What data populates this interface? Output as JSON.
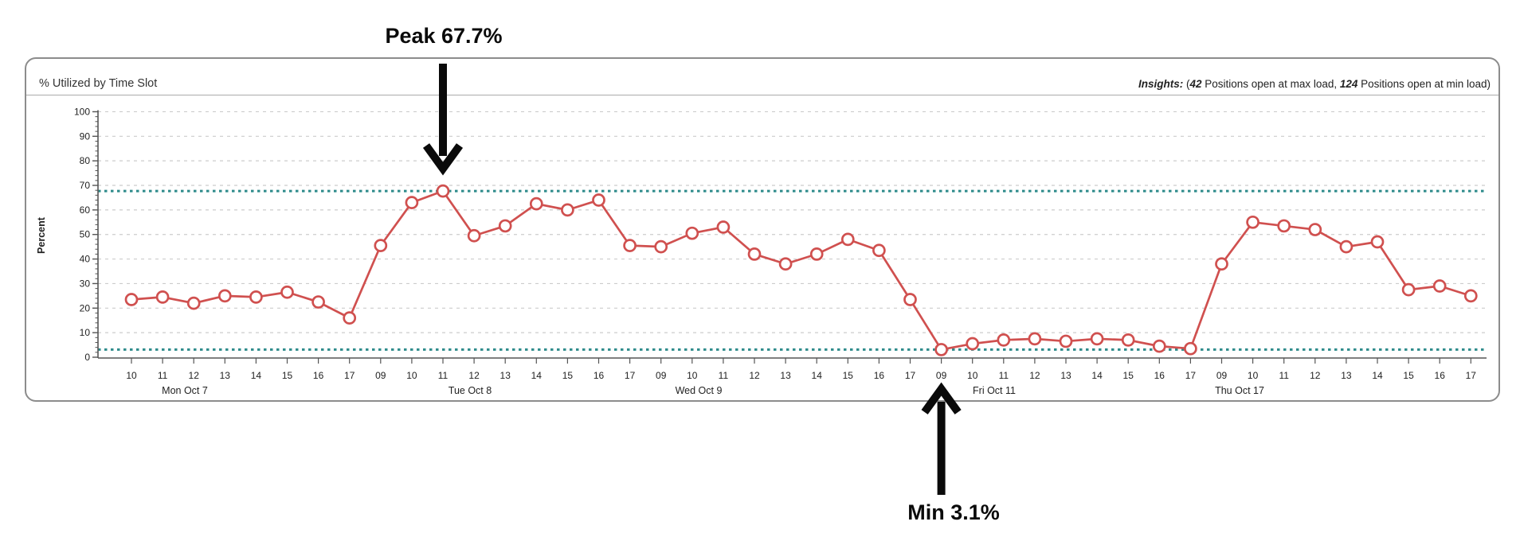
{
  "panel": {
    "title": "% Utilized by Time Slot",
    "insights": {
      "label": "Insights:",
      "open": " (",
      "max_count": "42",
      "max_text": " Positions open at max load, ",
      "min_count": "124",
      "min_text": " Positions open at min load)"
    }
  },
  "annotations": {
    "peak": {
      "label": "Peak 67.7%",
      "value": 67.7,
      "point_index": 10
    },
    "min": {
      "label": "Min 3.1%",
      "value": 3.1,
      "point_index": 26
    }
  },
  "colors": {
    "series": "#d0504f",
    "marker_fill": "#ffffff",
    "reference": "#2e8b8b",
    "grid": "#cccccc",
    "axis": "#555555",
    "label": "#222222",
    "annotation": "#0a0a0a",
    "panel_border": "#8c8c8c"
  },
  "chart_data": {
    "type": "line",
    "title": "% Utilized by Time Slot",
    "xlabel": "",
    "ylabel": "Percent",
    "ylim": [
      0,
      100
    ],
    "y_ticks": [
      0,
      10,
      20,
      30,
      40,
      50,
      60,
      70,
      80,
      90,
      100
    ],
    "grid": true,
    "legend": false,
    "marker": "open-circle",
    "series_name": "% Utilized",
    "reference_lines": [
      {
        "name": "max-load-line",
        "value": 67.7
      },
      {
        "name": "min-load-line",
        "value": 3.1
      }
    ],
    "groups": [
      {
        "day": "Mon Oct 7",
        "hours": [
          "10",
          "11",
          "12",
          "13",
          "14",
          "15",
          "16",
          "17"
        ],
        "values": [
          23.5,
          24.5,
          22,
          25,
          24.5,
          26.5,
          22.5,
          16
        ]
      },
      {
        "day": "Tue Oct 8",
        "hours": [
          "09",
          "10",
          "11",
          "12",
          "13",
          "14",
          "15",
          "16",
          "17"
        ],
        "values": [
          45.5,
          63,
          67.7,
          49.5,
          53.5,
          62.5,
          60,
          64,
          45.5
        ]
      },
      {
        "day": "Wed Oct 9",
        "hours": [
          "09",
          "10",
          "11",
          "12",
          "13",
          "14",
          "15",
          "16",
          "17"
        ],
        "values": [
          45,
          50.5,
          53,
          42,
          38,
          42,
          48,
          43.5,
          23.5
        ]
      },
      {
        "day": "Fri Oct 11",
        "hours": [
          "09",
          "10",
          "11",
          "12",
          "13",
          "14",
          "15",
          "16",
          "17"
        ],
        "values": [
          3.1,
          5.5,
          7,
          7.5,
          6.5,
          7.5,
          7,
          4.5,
          3.5
        ]
      },
      {
        "day": "Thu Oct 17",
        "hours": [
          "09",
          "10",
          "11",
          "12",
          "13",
          "14",
          "15",
          "16",
          "17"
        ],
        "values": [
          38,
          55,
          53.5,
          52,
          45,
          47,
          27.5,
          29,
          25
        ]
      }
    ]
  }
}
